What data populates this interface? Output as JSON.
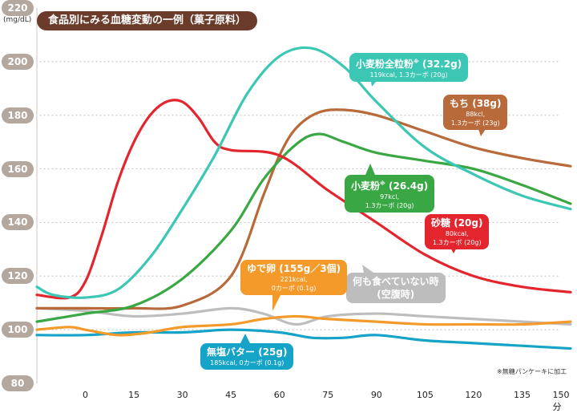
{
  "chart_data": {
    "type": "line",
    "title": "食品別にみる血糖変動の一例（菓子原料）",
    "ylabel": "(mg/dL)",
    "ylim": [
      80,
      220
    ],
    "yticks": [
      "80",
      "100",
      "120",
      "140",
      "160",
      "180",
      "200",
      "220"
    ],
    "xlim": [
      -15,
      150
    ],
    "xticks": [
      "0",
      "15",
      "30",
      "45",
      "60",
      "75",
      "90",
      "105",
      "120",
      "135",
      "150分"
    ],
    "xtick_values": [
      0,
      15,
      30,
      45,
      60,
      75,
      90,
      105,
      120,
      135,
      150
    ],
    "grid": "dotted-horizontal",
    "footnote": "※無糖パンケーキに加工",
    "series": [
      {
        "name": "小麦粉全粒粉",
        "sup": "※",
        "amount": "(32.2g)",
        "line1": "119kcal, 1.3カーボ (20g)",
        "color": "#3cc7b4",
        "x": [
          -15,
          -10,
          0,
          10,
          20,
          30,
          40,
          50,
          60,
          70,
          80,
          90,
          105,
          120,
          135,
          150
        ],
        "y": [
          116,
          113,
          112,
          115,
          127,
          145,
          165,
          188,
          202,
          205,
          198,
          185,
          168,
          158,
          150,
          145
        ]
      },
      {
        "name": "もち",
        "amount": "(38g)",
        "line1": "88kcl,",
        "line2": "1.3カーボ (23g)",
        "color": "#b86a3a",
        "x": [
          -15,
          0,
          15,
          30,
          45,
          55,
          60,
          65,
          72,
          80,
          90,
          105,
          120,
          135,
          150
        ],
        "y": [
          108,
          108,
          108,
          109,
          120,
          150,
          165,
          175,
          181,
          182,
          180,
          174,
          168,
          164,
          161
        ]
      },
      {
        "name": "小麦粉",
        "sup": "※",
        "amount": "(26.4g)",
        "line1": "97kcl,",
        "line2": "1.3カーボ (20g)",
        "color": "#3aa745",
        "x": [
          -15,
          0,
          15,
          30,
          45,
          55,
          65,
          72,
          80,
          90,
          105,
          120,
          135,
          150
        ],
        "y": [
          103,
          106,
          109,
          119,
          137,
          156,
          169,
          173,
          170,
          166,
          163,
          160,
          154,
          147
        ]
      },
      {
        "name": "砂糖",
        "amount": "(20g)",
        "line1": "80kcal,",
        "line2": "1.3カーボ (20g)",
        "color": "#e3262e",
        "x": [
          -15,
          -5,
          0,
          5,
          10,
          15,
          20,
          25,
          30,
          35,
          40,
          45,
          60,
          75,
          90,
          105,
          120,
          135,
          150
        ],
        "y": [
          113,
          112,
          118,
          135,
          155,
          170,
          180,
          185,
          185,
          179,
          170,
          167,
          165,
          152,
          140,
          128,
          120,
          116,
          114
        ]
      },
      {
        "name": "何も食べていない時",
        "line1": "(空腹時)",
        "color": "#bdbdbd",
        "x": [
          -15,
          0,
          15,
          30,
          45,
          55,
          65,
          75,
          90,
          105,
          120,
          135,
          150
        ],
        "y": [
          108,
          107,
          105,
          106,
          108,
          106,
          102,
          105,
          106,
          105,
          104,
          103,
          102
        ]
      },
      {
        "name": "ゆで卵",
        "amount": "(155g／3個)",
        "line1": "221kcal,",
        "line2": "0カーボ (0.1g)",
        "color": "#f39a2a",
        "x": [
          -15,
          -5,
          0,
          10,
          20,
          30,
          45,
          55,
          65,
          75,
          90,
          105,
          120,
          135,
          150
        ],
        "y": [
          100,
          101,
          100,
          98,
          99,
          101,
          102,
          104,
          105,
          104,
          103,
          102,
          102,
          102,
          103
        ]
      },
      {
        "name": "無塩バター",
        "amount": "(25g)",
        "line1": "185kcal, 0カーボ (0.1g)",
        "color": "#15a3c8",
        "x": [
          -15,
          0,
          15,
          30,
          45,
          60,
          70,
          80,
          90,
          105,
          120,
          135,
          150
        ],
        "y": [
          98,
          98,
          99,
          99,
          100,
          99,
          97,
          97,
          98,
          96,
          95,
          94,
          93
        ]
      }
    ]
  }
}
